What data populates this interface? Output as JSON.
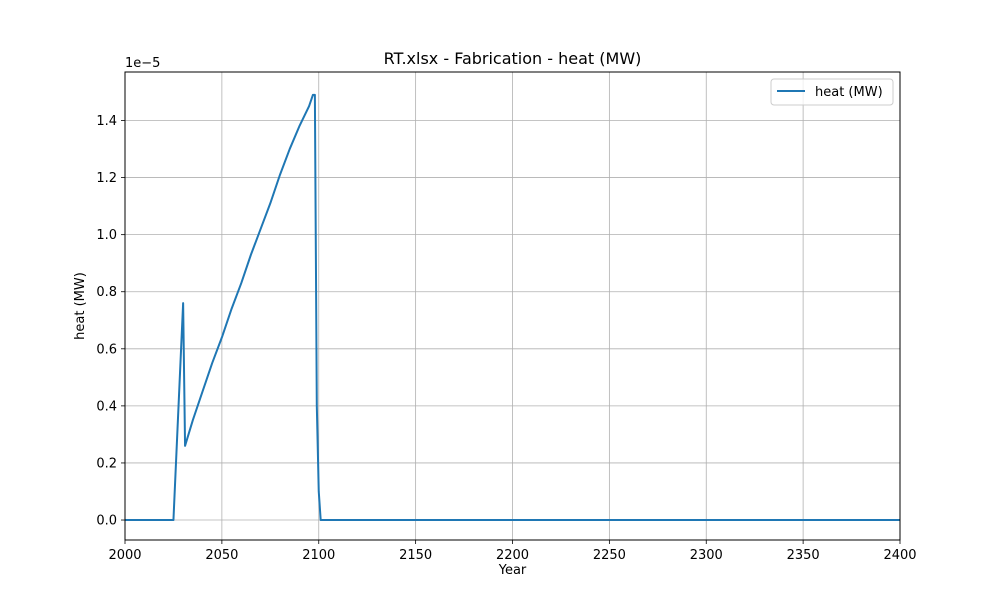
{
  "chart_data": {
    "type": "line",
    "title": "RT.xlsx - Fabrication - heat (MW)",
    "xlabel": "Year",
    "ylabel": "heat (MW)",
    "y_scale_label": "1e−5",
    "xlim": [
      2000,
      2400
    ],
    "ylim": [
      -0.07,
      1.57
    ],
    "x_ticks": [
      2000,
      2050,
      2100,
      2150,
      2200,
      2250,
      2300,
      2350,
      2400
    ],
    "x_tick_labels": [
      "2000",
      "2050",
      "2100",
      "2150",
      "2200",
      "2250",
      "2300",
      "2350",
      "2400"
    ],
    "y_ticks": [
      0.0,
      0.2,
      0.4,
      0.6,
      0.8,
      1.0,
      1.2,
      1.4
    ],
    "y_tick_labels": [
      "0.0",
      "0.2",
      "0.4",
      "0.6",
      "0.8",
      "1.0",
      "1.2",
      "1.4"
    ],
    "grid": true,
    "legend_position": "top-right",
    "series": [
      {
        "name": "heat (MW)",
        "color": "#1f77b4",
        "x": [
          2000,
          2025,
          2030,
          2031,
          2035,
          2040,
          2045,
          2050,
          2055,
          2060,
          2065,
          2070,
          2075,
          2080,
          2085,
          2090,
          2095,
          2097,
          2098,
          2099,
          2100,
          2101,
          2400
        ],
        "y": [
          0.0,
          0.0,
          0.76,
          0.26,
          0.35,
          0.45,
          0.55,
          0.64,
          0.74,
          0.83,
          0.93,
          1.02,
          1.11,
          1.21,
          1.3,
          1.38,
          1.45,
          1.49,
          1.49,
          0.4,
          0.1,
          0.0,
          0.0
        ]
      }
    ]
  }
}
